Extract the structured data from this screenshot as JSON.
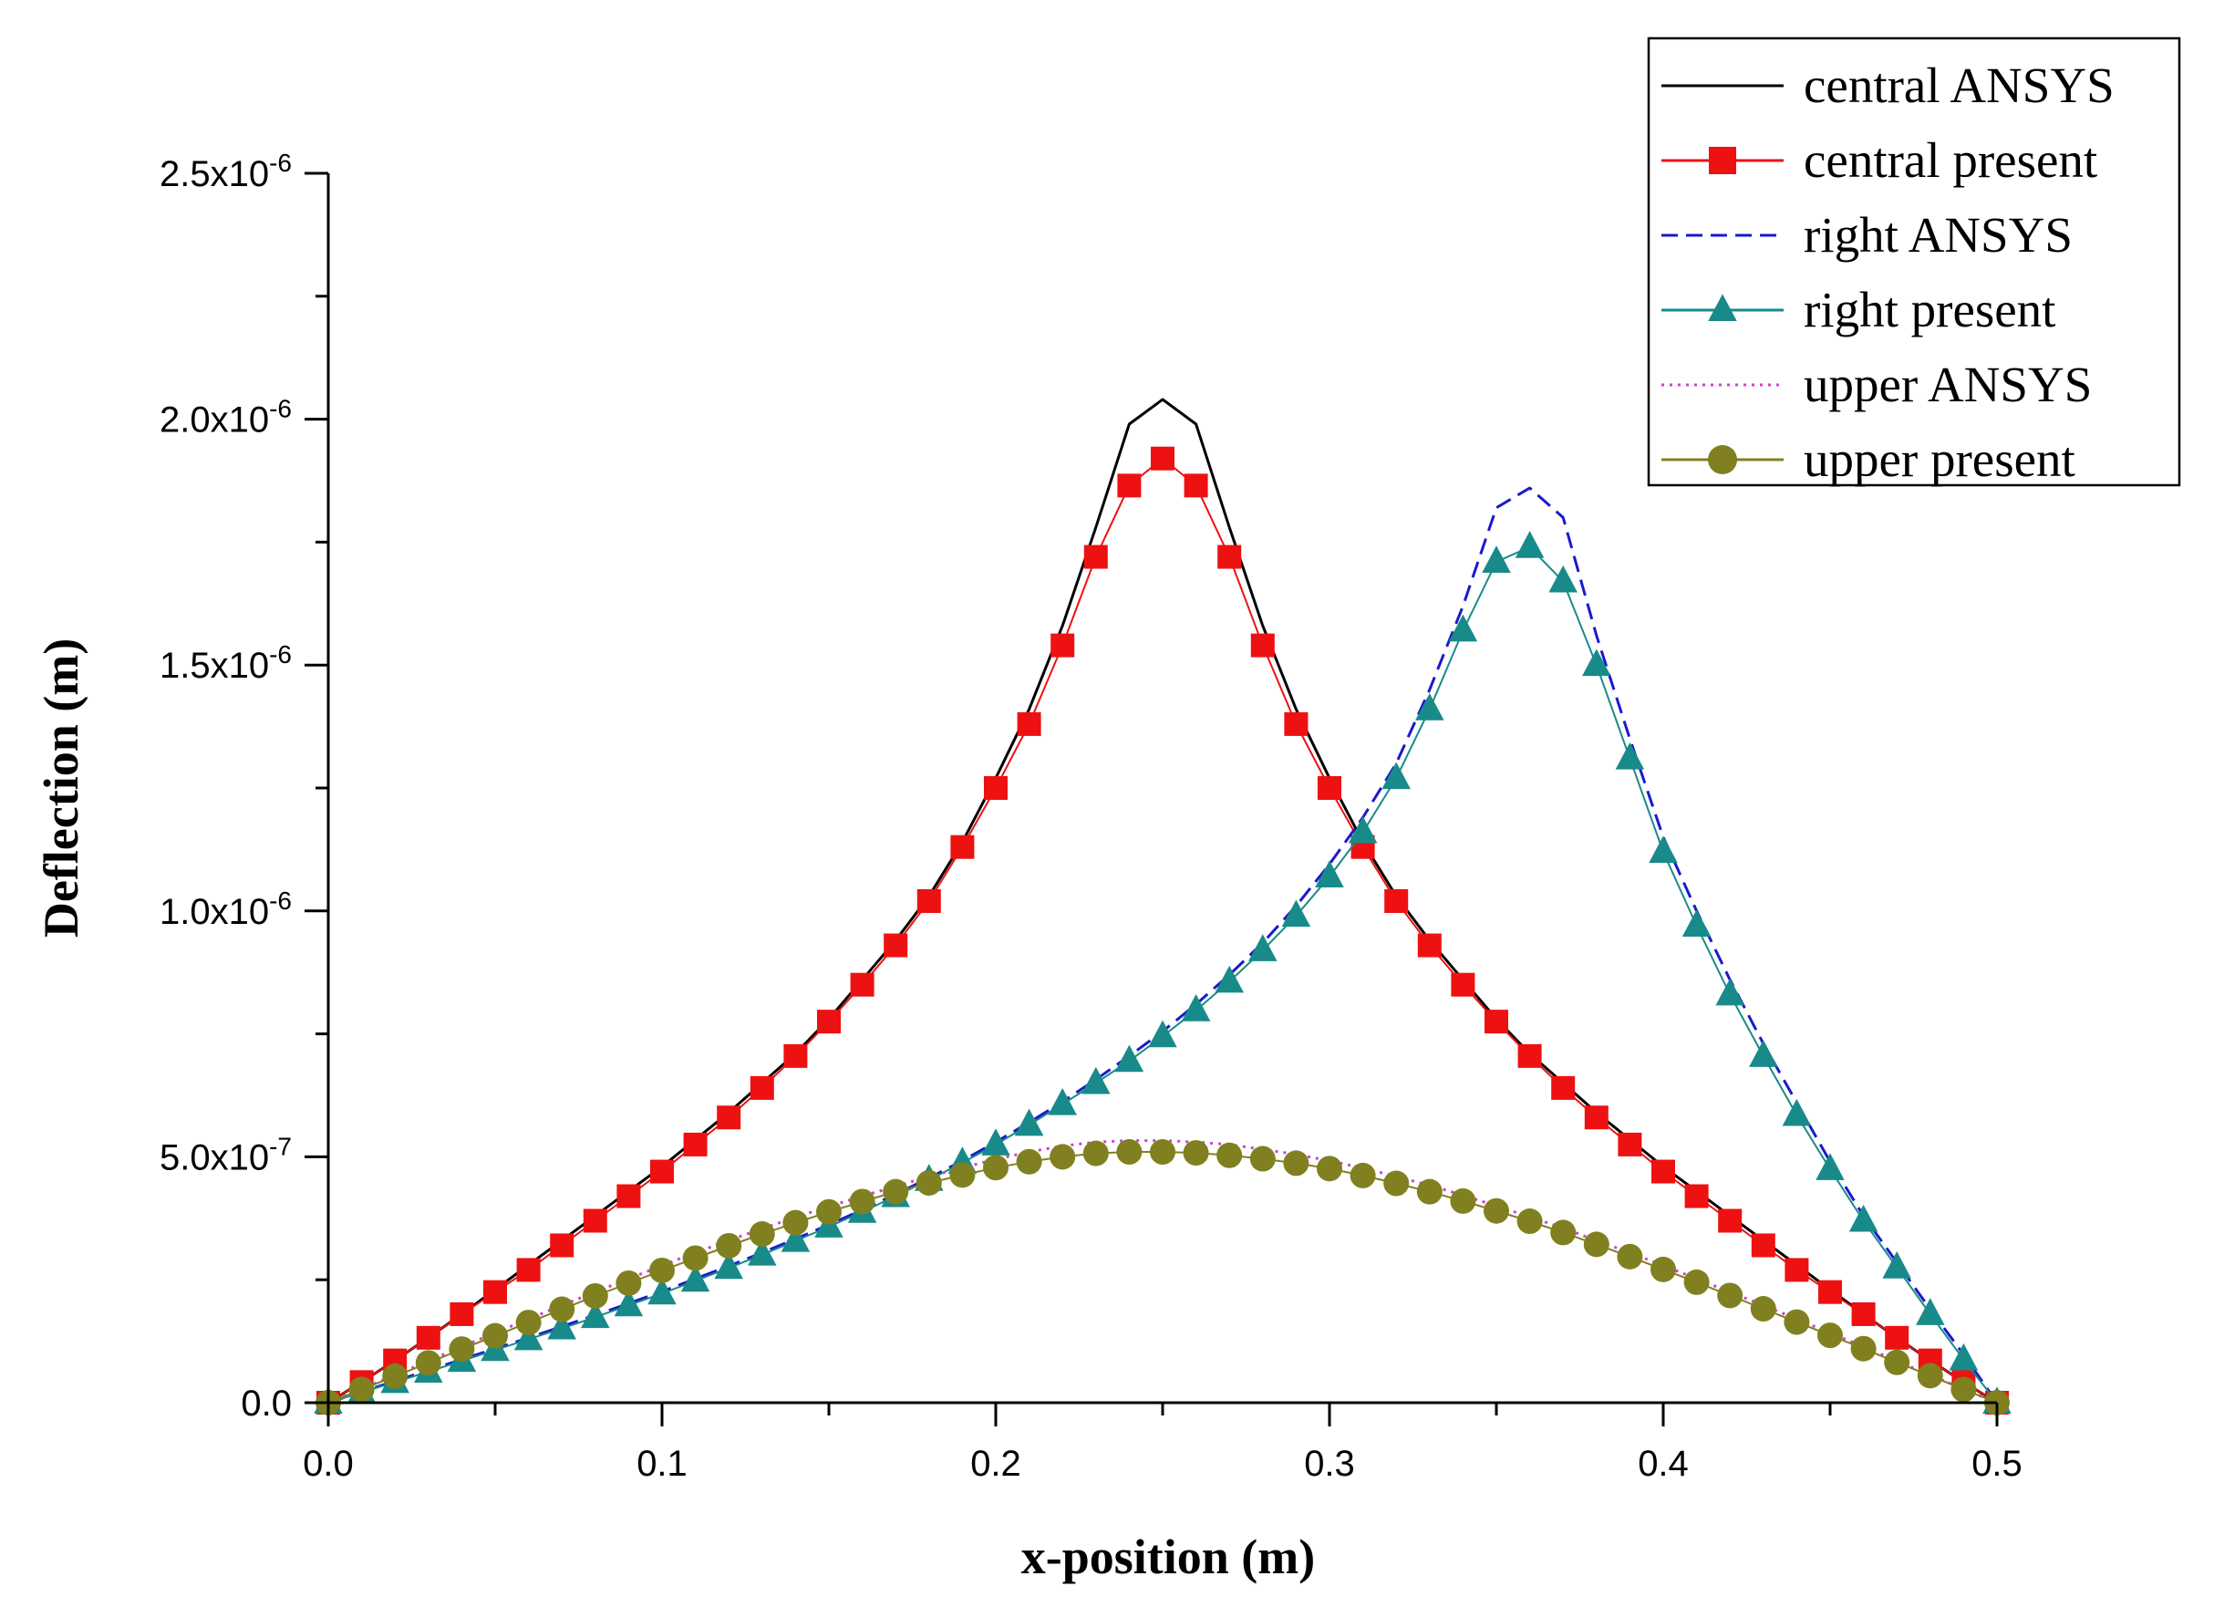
{
  "chart_data": {
    "type": "line",
    "title": "",
    "xlabel": "x-position (m)",
    "ylabel": "Deflection (m)",
    "xlim": [
      0,
      0.5
    ],
    "ylim": [
      0,
      2.5e-06
    ],
    "grid": false,
    "legend_position": "top-right",
    "x_ticks": [
      0.0,
      0.1,
      0.2,
      0.3,
      0.4,
      0.5
    ],
    "x_tick_labels": [
      "0.0",
      "0.1",
      "0.2",
      "0.3",
      "0.4",
      "0.5"
    ],
    "y_ticks": [
      0,
      5e-07,
      1e-06,
      1.5e-06,
      2e-06,
      2.5e-06
    ],
    "y_tick_labels": [
      {
        "mant": "0.0",
        "exp": ""
      },
      {
        "mant": "5.0x10",
        "exp": "-7"
      },
      {
        "mant": "1.0x10",
        "exp": "-6"
      },
      {
        "mant": "1.5x10",
        "exp": "-6"
      },
      {
        "mant": "2.0x10",
        "exp": "-6"
      },
      {
        "mant": "2.5x10",
        "exp": "-6"
      }
    ],
    "series": [
      {
        "name": "central ANSYS",
        "color": "#000000",
        "dash": "solid",
        "marker": "none",
        "x": [
          0,
          0.01,
          0.02,
          0.03,
          0.04,
          0.05,
          0.06,
          0.07,
          0.08,
          0.09,
          0.1,
          0.11,
          0.12,
          0.13,
          0.14,
          0.15,
          0.16,
          0.17,
          0.18,
          0.19,
          0.2,
          0.21,
          0.22,
          0.23,
          0.24,
          0.25,
          0.26,
          0.27,
          0.28,
          0.29,
          0.3,
          0.31,
          0.32,
          0.33,
          0.34,
          0.35,
          0.36,
          0.37,
          0.38,
          0.39,
          0.4,
          0.41,
          0.42,
          0.43,
          0.44,
          0.45,
          0.46,
          0.47,
          0.48,
          0.49,
          0.5
        ],
        "y": [
          0,
          4.2e-08,
          8.6e-08,
          1.32e-07,
          1.8e-07,
          2.3e-07,
          2.8e-07,
          3.3e-07,
          3.8e-07,
          4.3e-07,
          4.8e-07,
          5.35e-07,
          5.9e-07,
          6.5e-07,
          7.1e-07,
          7.8e-07,
          8.6e-07,
          9.4e-07,
          1.03e-06,
          1.14e-06,
          1.27e-06,
          1.41e-06,
          1.58e-06,
          1.78e-06,
          1.99e-06,
          2.04e-06,
          1.99e-06,
          1.78e-06,
          1.58e-06,
          1.41e-06,
          1.27e-06,
          1.14e-06,
          1.03e-06,
          9.4e-07,
          8.6e-07,
          7.8e-07,
          7.1e-07,
          6.5e-07,
          5.9e-07,
          5.35e-07,
          4.8e-07,
          4.3e-07,
          3.8e-07,
          3.3e-07,
          2.8e-07,
          2.3e-07,
          1.8e-07,
          1.32e-07,
          8.6e-08,
          4.2e-08,
          0
        ]
      },
      {
        "name": "central present",
        "color": "#ee1111",
        "dash": "solid",
        "marker": "square",
        "x": [
          0,
          0.01,
          0.02,
          0.03,
          0.04,
          0.05,
          0.06,
          0.07,
          0.08,
          0.09,
          0.1,
          0.11,
          0.12,
          0.13,
          0.14,
          0.15,
          0.16,
          0.17,
          0.18,
          0.19,
          0.2,
          0.21,
          0.22,
          0.23,
          0.24,
          0.25,
          0.26,
          0.27,
          0.28,
          0.29,
          0.3,
          0.31,
          0.32,
          0.33,
          0.34,
          0.35,
          0.36,
          0.37,
          0.38,
          0.39,
          0.4,
          0.41,
          0.42,
          0.43,
          0.44,
          0.45,
          0.46,
          0.47,
          0.48,
          0.49,
          0.5
        ],
        "y": [
          0,
          4.2e-08,
          8.6e-08,
          1.32e-07,
          1.8e-07,
          2.25e-07,
          2.7e-07,
          3.2e-07,
          3.7e-07,
          4.2e-07,
          4.7e-07,
          5.25e-07,
          5.8e-07,
          6.4e-07,
          7.05e-07,
          7.75e-07,
          8.5e-07,
          9.3e-07,
          1.02e-06,
          1.13e-06,
          1.25e-06,
          1.38e-06,
          1.54e-06,
          1.72e-06,
          1.865e-06,
          1.92e-06,
          1.865e-06,
          1.72e-06,
          1.54e-06,
          1.38e-06,
          1.25e-06,
          1.13e-06,
          1.02e-06,
          9.3e-07,
          8.5e-07,
          7.75e-07,
          7.05e-07,
          6.4e-07,
          5.8e-07,
          5.25e-07,
          4.7e-07,
          4.2e-07,
          3.7e-07,
          3.2e-07,
          2.7e-07,
          2.25e-07,
          1.8e-07,
          1.32e-07,
          8.6e-08,
          4.2e-08,
          0
        ]
      },
      {
        "name": "right ANSYS",
        "color": "#1a1acc",
        "dash": "dash",
        "marker": "none",
        "x": [
          0,
          0.01,
          0.02,
          0.03,
          0.04,
          0.05,
          0.06,
          0.07,
          0.08,
          0.09,
          0.1,
          0.11,
          0.12,
          0.13,
          0.14,
          0.15,
          0.16,
          0.17,
          0.18,
          0.19,
          0.2,
          0.21,
          0.22,
          0.23,
          0.24,
          0.25,
          0.26,
          0.27,
          0.28,
          0.29,
          0.3,
          0.31,
          0.32,
          0.33,
          0.34,
          0.35,
          0.36,
          0.37,
          0.38,
          0.39,
          0.4,
          0.41,
          0.42,
          0.43,
          0.44,
          0.45,
          0.46,
          0.47,
          0.48,
          0.49,
          0.5
        ],
        "y": [
          0,
          2.2e-08,
          4.4e-08,
          6.6e-08,
          8.8e-08,
          1.1e-07,
          1.32e-07,
          1.55e-07,
          1.78e-07,
          2.02e-07,
          2.26e-07,
          2.52e-07,
          2.78e-07,
          3.05e-07,
          3.33e-07,
          3.62e-07,
          3.92e-07,
          4.24e-07,
          4.57e-07,
          4.92e-07,
          5.3e-07,
          5.7e-07,
          6.12e-07,
          6.57e-07,
          7.05e-07,
          7.55e-07,
          8.1e-07,
          8.7e-07,
          9.35e-07,
          1.01e-06,
          1.095e-06,
          1.19e-06,
          1.3e-06,
          1.45e-06,
          1.62e-06,
          1.82e-06,
          1.86e-06,
          1.8e-06,
          1.56e-06,
          1.35e-06,
          1.15e-06,
          1e-06,
          8.6e-07,
          7.3e-07,
          6.1e-07,
          4.9e-07,
          3.8e-07,
          2.85e-07,
          1.9e-07,
          9.8e-08,
          0
        ]
      },
      {
        "name": "right present",
        "color": "#188a8a",
        "dash": "solid",
        "marker": "triangle",
        "x": [
          0,
          0.01,
          0.02,
          0.03,
          0.04,
          0.05,
          0.06,
          0.07,
          0.08,
          0.09,
          0.1,
          0.11,
          0.12,
          0.13,
          0.14,
          0.15,
          0.16,
          0.17,
          0.18,
          0.19,
          0.2,
          0.21,
          0.22,
          0.23,
          0.24,
          0.25,
          0.26,
          0.27,
          0.28,
          0.29,
          0.3,
          0.31,
          0.32,
          0.33,
          0.34,
          0.35,
          0.36,
          0.37,
          0.38,
          0.39,
          0.4,
          0.41,
          0.42,
          0.43,
          0.44,
          0.45,
          0.46,
          0.47,
          0.48,
          0.49,
          0.5
        ],
        "y": [
          0,
          2.1e-08,
          4.2e-08,
          6.3e-08,
          8.5e-08,
          1.07e-07,
          1.29e-07,
          1.51e-07,
          1.74e-07,
          1.98e-07,
          2.22e-07,
          2.48e-07,
          2.74e-07,
          3.01e-07,
          3.29e-07,
          3.58e-07,
          3.88e-07,
          4.2e-07,
          4.53e-07,
          4.88e-07,
          5.25e-07,
          5.65e-07,
          6.07e-07,
          6.5e-07,
          6.95e-07,
          7.45e-07,
          7.98e-07,
          8.56e-07,
          9.2e-07,
          9.9e-07,
          1.07e-06,
          1.16e-06,
          1.27e-06,
          1.41e-06,
          1.57e-06,
          1.71e-06,
          1.74e-06,
          1.67e-06,
          1.5e-06,
          1.31e-06,
          1.12e-06,
          9.7e-07,
          8.3e-07,
          7.05e-07,
          5.85e-07,
          4.75e-07,
          3.7e-07,
          2.75e-07,
          1.8e-07,
          8.8e-08,
          0
        ]
      },
      {
        "name": "upper ANSYS",
        "color": "#cc44cc",
        "dash": "dot",
        "marker": "none",
        "x": [
          0,
          0.01,
          0.02,
          0.03,
          0.04,
          0.05,
          0.06,
          0.07,
          0.08,
          0.09,
          0.1,
          0.11,
          0.12,
          0.13,
          0.14,
          0.15,
          0.16,
          0.17,
          0.18,
          0.19,
          0.2,
          0.21,
          0.22,
          0.23,
          0.24,
          0.25,
          0.26,
          0.27,
          0.28,
          0.29,
          0.3,
          0.31,
          0.32,
          0.33,
          0.34,
          0.35,
          0.36,
          0.37,
          0.38,
          0.39,
          0.4,
          0.41,
          0.42,
          0.43,
          0.44,
          0.45,
          0.46,
          0.47,
          0.48,
          0.49,
          0.5
        ],
        "y": [
          0,
          2.8e-08,
          5.6e-08,
          8.5e-08,
          1.14e-07,
          1.42e-07,
          1.7e-07,
          1.98e-07,
          2.25e-07,
          2.52e-07,
          2.79e-07,
          3.05e-07,
          3.3e-07,
          3.54e-07,
          3.77e-07,
          3.99e-07,
          4.2e-07,
          4.4e-07,
          4.6e-07,
          4.78e-07,
          4.95e-07,
          5.1e-07,
          5.22e-07,
          5.3e-07,
          5.33e-07,
          5.33e-07,
          5.3e-07,
          5.25e-07,
          5.15e-07,
          5.05e-07,
          4.92e-07,
          4.77e-07,
          4.6e-07,
          4.42e-07,
          4.22e-07,
          4e-07,
          3.78e-07,
          3.55e-07,
          3.3e-07,
          3.05e-07,
          2.79e-07,
          2.52e-07,
          2.25e-07,
          1.98e-07,
          1.7e-07,
          1.42e-07,
          1.14e-07,
          8.5e-08,
          5.6e-08,
          2.8e-08,
          0
        ]
      },
      {
        "name": "upper present",
        "color": "#808020",
        "dash": "solid",
        "marker": "circle",
        "x": [
          0,
          0.01,
          0.02,
          0.03,
          0.04,
          0.05,
          0.06,
          0.07,
          0.08,
          0.09,
          0.1,
          0.11,
          0.12,
          0.13,
          0.14,
          0.15,
          0.16,
          0.17,
          0.18,
          0.19,
          0.2,
          0.21,
          0.22,
          0.23,
          0.24,
          0.25,
          0.26,
          0.27,
          0.28,
          0.29,
          0.3,
          0.31,
          0.32,
          0.33,
          0.34,
          0.35,
          0.36,
          0.37,
          0.38,
          0.39,
          0.4,
          0.41,
          0.42,
          0.43,
          0.44,
          0.45,
          0.46,
          0.47,
          0.48,
          0.49,
          0.5
        ],
        "y": [
          0,
          2.7e-08,
          5.4e-08,
          8.1e-08,
          1.09e-07,
          1.36e-07,
          1.63e-07,
          1.9e-07,
          2.17e-07,
          2.43e-07,
          2.69e-07,
          2.94e-07,
          3.19e-07,
          3.43e-07,
          3.66e-07,
          3.88e-07,
          4.09e-07,
          4.29e-07,
          4.47e-07,
          4.63e-07,
          4.78e-07,
          4.9e-07,
          5e-07,
          5.07e-07,
          5.1e-07,
          5.1e-07,
          5.08e-07,
          5.03e-07,
          4.96e-07,
          4.87e-07,
          4.76e-07,
          4.62e-07,
          4.46e-07,
          4.29e-07,
          4.1e-07,
          3.9e-07,
          3.69e-07,
          3.46e-07,
          3.22e-07,
          2.97e-07,
          2.71e-07,
          2.45e-07,
          2.18e-07,
          1.91e-07,
          1.64e-07,
          1.37e-07,
          1.1e-07,
          8.2e-08,
          5.5e-08,
          2.7e-08,
          0
        ]
      }
    ]
  }
}
